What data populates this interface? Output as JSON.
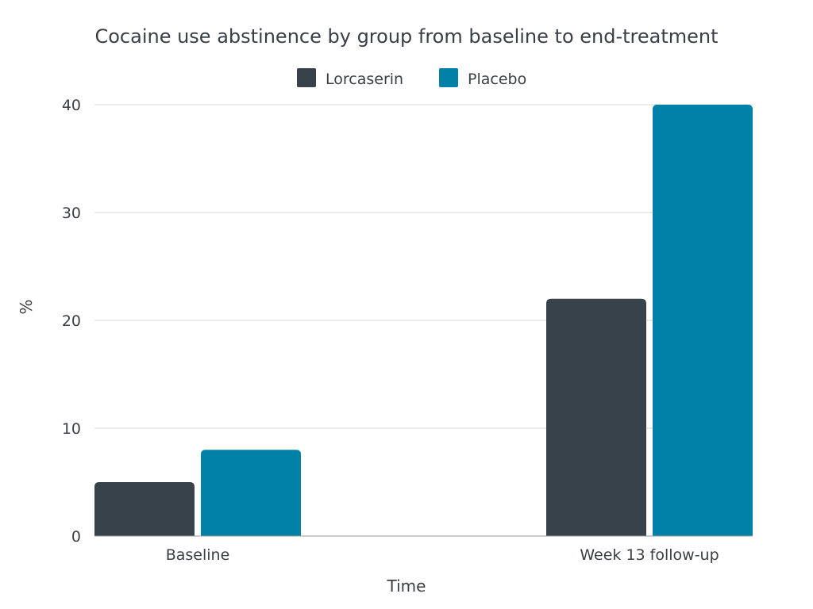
{
  "chart_data": {
    "type": "bar",
    "title": "Cocaine use abstinence by group from baseline to end-treatment",
    "xlabel": "Time",
    "ylabel": "%",
    "categories": [
      "Baseline",
      "Week 13 follow-up"
    ],
    "series": [
      {
        "name": "Lorcaserin",
        "values": [
          5,
          22
        ],
        "color": "#37424a"
      },
      {
        "name": "Placebo",
        "values": [
          8,
          40
        ],
        "color": "#0081a7"
      }
    ],
    "ylim": [
      0,
      40
    ],
    "yticks": [
      0,
      10,
      20,
      30,
      40
    ],
    "grid": true,
    "legend_position": "top-center"
  }
}
